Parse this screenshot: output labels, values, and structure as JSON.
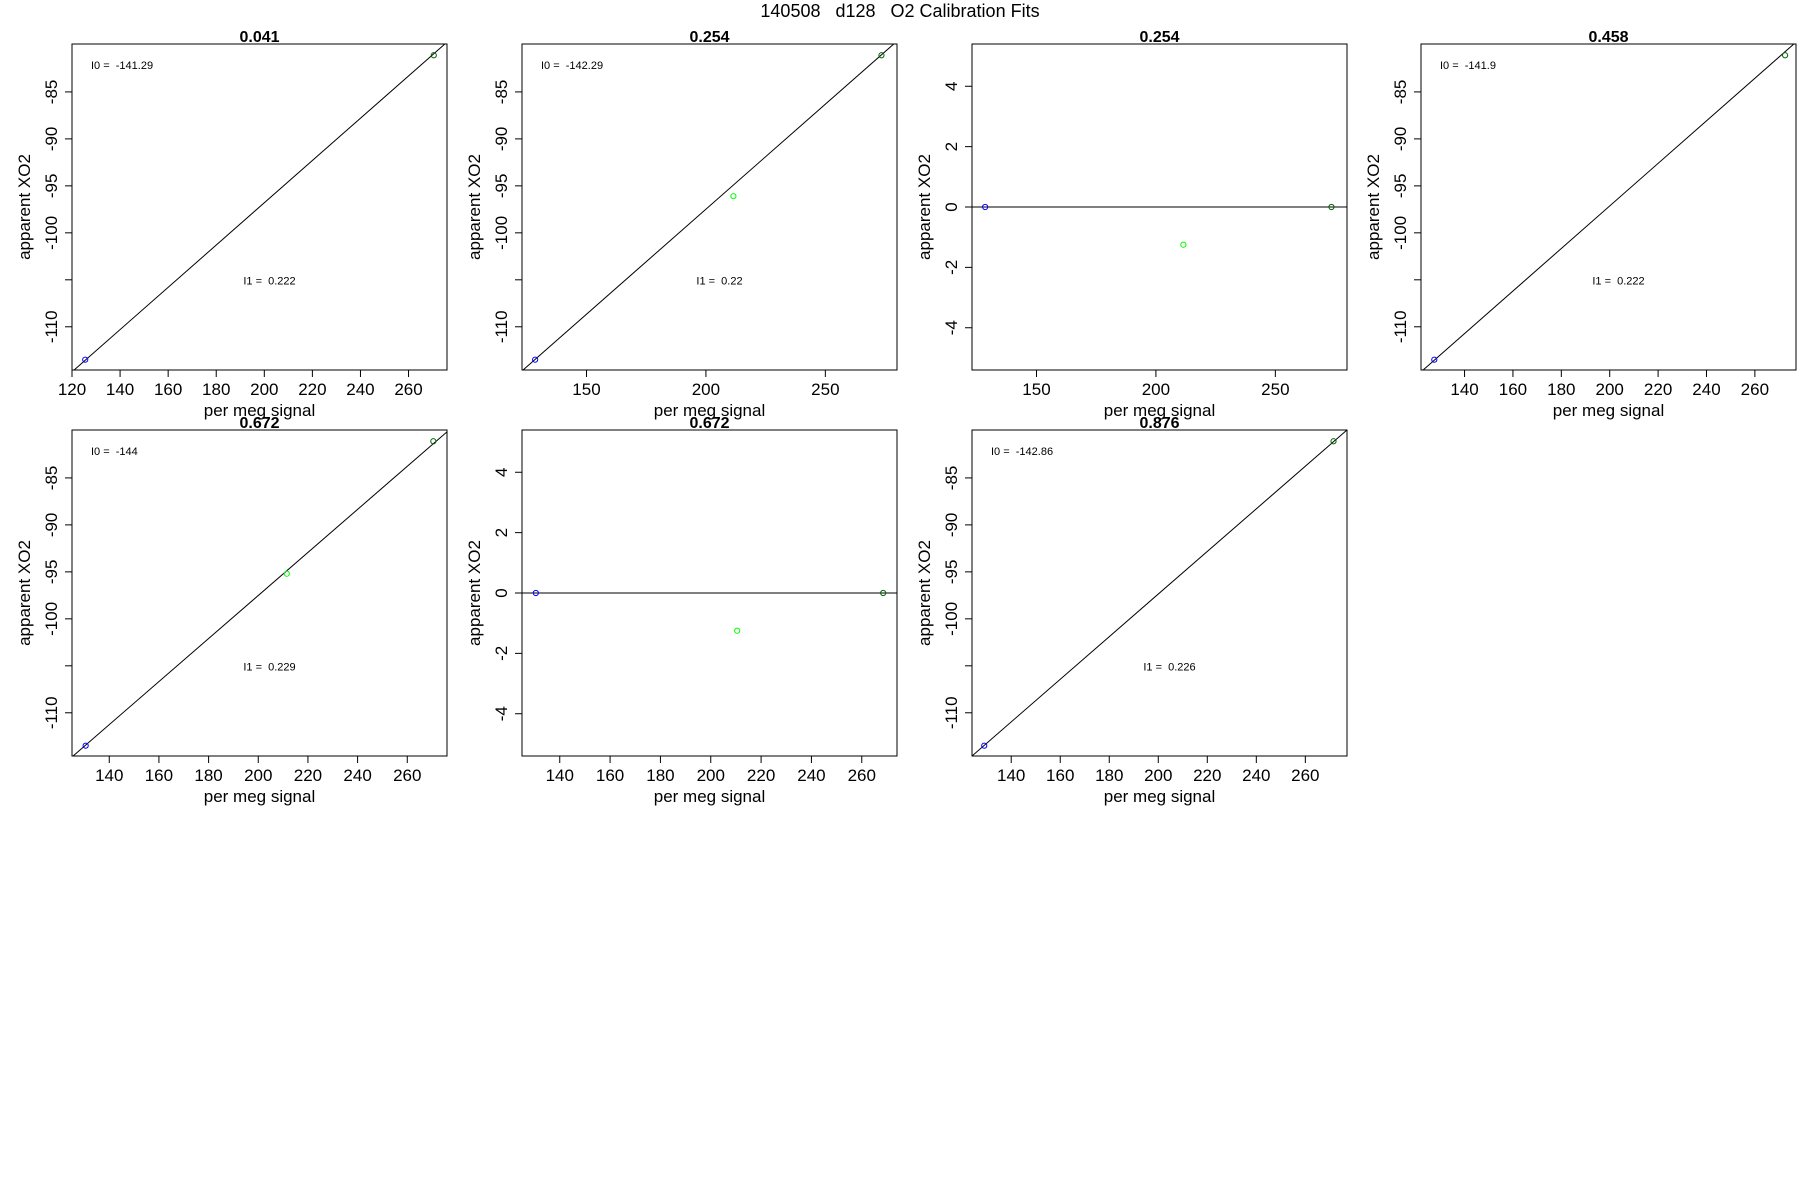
{
  "title": "140508   d128   O2 Calibration Fits",
  "colors": {
    "blue": "#0000ff",
    "green": "#00ff00",
    "darkgreen": "#006400",
    "axis": "#000000"
  },
  "chart_data": [
    {
      "type": "scatter",
      "title": "0.041",
      "xlabel": "per meg signal",
      "ylabel": "apparent XO2",
      "xlim": [
        120,
        276
      ],
      "ylim": [
        -114.6,
        -79.9
      ],
      "xticks": [
        120,
        140,
        160,
        180,
        200,
        220,
        240,
        260
      ],
      "yticks": [
        -110,
        -105,
        -100,
        -95,
        -90,
        -85
      ],
      "ytick_labels": [
        "-110",
        "",
        "-100",
        "-95",
        "-90",
        "-85"
      ],
      "points": [
        {
          "x": 125.5,
          "y": -113.5,
          "color": "blue"
        },
        {
          "x": 270.5,
          "y": -81.1,
          "color": "darkgreen"
        }
      ],
      "fit_line": {
        "x1": 120,
        "y1": -114.8,
        "x2": 276,
        "y2": -79.7
      },
      "annotations": [
        {
          "label": "I0 =  -141.29",
          "pos": "top-left"
        },
        {
          "label": "I1 =  0.222",
          "pos": "middle"
        }
      ]
    },
    {
      "type": "scatter",
      "title": "0.254",
      "xlabel": "per meg signal",
      "ylabel": "apparent XO2",
      "xlim": [
        123,
        280
      ],
      "ylim": [
        -114.6,
        -79.9
      ],
      "xticks": [
        150,
        200,
        250
      ],
      "yticks": [
        -110,
        -105,
        -100,
        -95,
        -90,
        -85
      ],
      "ytick_labels": [
        "-110",
        "",
        "-100",
        "-95",
        "-90",
        "-85"
      ],
      "points": [
        {
          "x": 128.5,
          "y": -113.5,
          "color": "blue"
        },
        {
          "x": 211.5,
          "y": -96.1,
          "color": "green"
        },
        {
          "x": 273.5,
          "y": -81.1,
          "color": "darkgreen"
        }
      ],
      "fit_line": {
        "x1": 123,
        "y1": -114.7,
        "x2": 280,
        "y2": -79.6
      },
      "annotations": [
        {
          "label": "I0 =  -142.29",
          "pos": "top-left"
        },
        {
          "label": "I1 =  0.22",
          "pos": "middle"
        }
      ]
    },
    {
      "type": "scatter",
      "title": "0.254",
      "xlabel": "per meg signal",
      "ylabel": "apparent XO2",
      "xlim": [
        123,
        280
      ],
      "ylim": [
        -5.4,
        5.4
      ],
      "xticks": [
        150,
        200,
        250
      ],
      "yticks": [
        -4,
        -2,
        0,
        2,
        4
      ],
      "ytick_labels": [
        "-4",
        "-2",
        "0",
        "2",
        "4"
      ],
      "points": [
        {
          "x": 128.5,
          "y": 0,
          "color": "blue"
        },
        {
          "x": 211.5,
          "y": -1.25,
          "color": "green"
        },
        {
          "x": 273.5,
          "y": 0,
          "color": "darkgreen"
        }
      ],
      "fit_line": {
        "x1": 123,
        "y1": 0,
        "x2": 280,
        "y2": 0
      },
      "annotations": []
    },
    {
      "type": "scatter",
      "title": "0.458",
      "xlabel": "per meg signal",
      "ylabel": "apparent XO2",
      "xlim": [
        122,
        277
      ],
      "ylim": [
        -114.6,
        -79.9
      ],
      "xticks": [
        140,
        160,
        180,
        200,
        220,
        240,
        260
      ],
      "yticks": [
        -110,
        -105,
        -100,
        -95,
        -90,
        -85
      ],
      "ytick_labels": [
        "-110",
        "",
        "-100",
        "-95",
        "-90",
        "-85"
      ],
      "points": [
        {
          "x": 127.5,
          "y": -113.5,
          "color": "blue"
        },
        {
          "x": 272.5,
          "y": -81.1,
          "color": "darkgreen"
        }
      ],
      "fit_line": {
        "x1": 122,
        "y1": -114.8,
        "x2": 277,
        "y2": -79.7
      },
      "annotations": [
        {
          "label": "I0 =  -141.9",
          "pos": "top-left"
        },
        {
          "label": "I1 =  0.222",
          "pos": "middle"
        }
      ]
    },
    {
      "type": "scatter",
      "title": "0.672",
      "xlabel": "per meg signal",
      "ylabel": "apparent XO2",
      "xlim": [
        125,
        276
      ],
      "ylim": [
        -114.6,
        -79.9
      ],
      "xticks": [
        140,
        160,
        180,
        200,
        220,
        240,
        260
      ],
      "yticks": [
        -110,
        -105,
        -100,
        -95,
        -90,
        -85
      ],
      "ytick_labels": [
        "-110",
        "",
        "-100",
        "-95",
        "-90",
        "-85"
      ],
      "points": [
        {
          "x": 130.5,
          "y": -113.5,
          "color": "blue"
        },
        {
          "x": 211.5,
          "y": -95.2,
          "color": "green"
        },
        {
          "x": 270.5,
          "y": -81.1,
          "color": "darkgreen"
        }
      ],
      "fit_line": {
        "x1": 125,
        "y1": -114.7,
        "x2": 276,
        "y2": -80.1
      },
      "annotations": [
        {
          "label": "I0 =  -144",
          "pos": "top-left"
        },
        {
          "label": "I1 =  0.229",
          "pos": "middle"
        }
      ]
    },
    {
      "type": "scatter",
      "title": "0.672",
      "xlabel": "per meg signal",
      "ylabel": "apparent XO2",
      "xlim": [
        125,
        274
      ],
      "ylim": [
        -5.4,
        5.4
      ],
      "xticks": [
        140,
        160,
        180,
        200,
        220,
        240,
        260
      ],
      "yticks": [
        -4,
        -2,
        0,
        2,
        4
      ],
      "ytick_labels": [
        "-4",
        "-2",
        "0",
        "2",
        "4"
      ],
      "points": [
        {
          "x": 130.5,
          "y": 0,
          "color": "blue"
        },
        {
          "x": 210.5,
          "y": -1.25,
          "color": "green"
        },
        {
          "x": 268.5,
          "y": 0,
          "color": "darkgreen"
        }
      ],
      "fit_line": {
        "x1": 125,
        "y1": 0,
        "x2": 274,
        "y2": 0
      },
      "annotations": []
    },
    {
      "type": "scatter",
      "title": "0.876",
      "xlabel": "per meg signal",
      "ylabel": "apparent XO2",
      "xlim": [
        124,
        277
      ],
      "ylim": [
        -114.6,
        -79.9
      ],
      "xticks": [
        140,
        160,
        180,
        200,
        220,
        240,
        260
      ],
      "yticks": [
        -110,
        -105,
        -100,
        -95,
        -90,
        -85
      ],
      "ytick_labels": [
        "-110",
        "",
        "-100",
        "-95",
        "-90",
        "-85"
      ],
      "points": [
        {
          "x": 129,
          "y": -113.5,
          "color": "blue"
        },
        {
          "x": 271.5,
          "y": -81.1,
          "color": "darkgreen"
        }
      ],
      "fit_line": {
        "x1": 124,
        "y1": -114.6,
        "x2": 277,
        "y2": -79.9
      },
      "annotations": [
        {
          "label": "I0 =  -142.86",
          "pos": "top-left"
        },
        {
          "label": "I1 =  0.226",
          "pos": "middle"
        }
      ]
    }
  ]
}
